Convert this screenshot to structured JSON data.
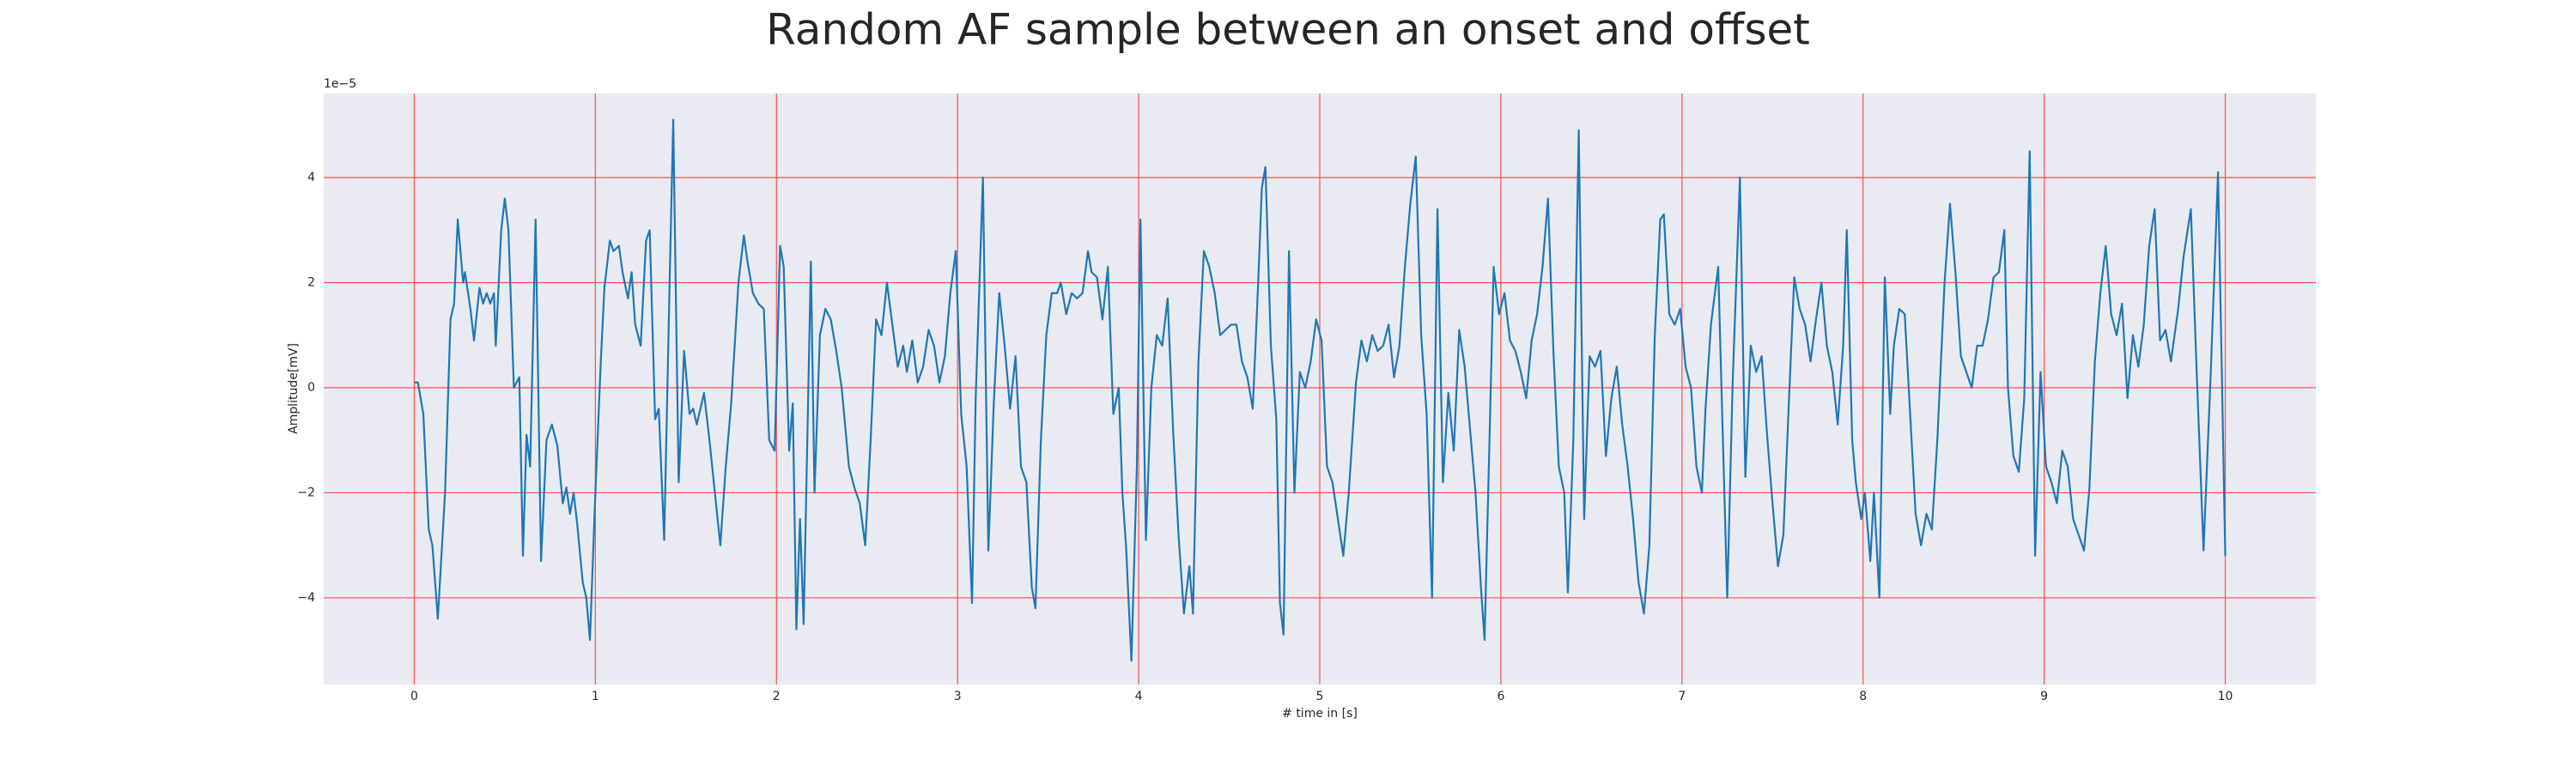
{
  "chart_data": {
    "type": "line",
    "title": "Random AF sample between an onset and offset",
    "xlabel": "# time in [s]",
    "ylabel": "Amplitude[mV]",
    "y_offset_label": "1e−5",
    "xlim": [
      -0.5,
      10.5
    ],
    "ylim": [
      -5.65,
      5.6
    ],
    "xticks": [
      0,
      1,
      2,
      3,
      4,
      5,
      6,
      7,
      8,
      9,
      10
    ],
    "yticks": [
      {
        "value": -4,
        "label": "−4"
      },
      {
        "value": -2,
        "label": "−2"
      },
      0,
      2,
      4
    ],
    "grid": true,
    "grid_color": "#ff4d4d",
    "background": "#eaeaf2",
    "x": [
      0,
      0.02,
      0.05,
      0.08,
      0.1,
      0.13,
      0.17,
      0.2,
      0.22,
      0.24,
      0.27,
      0.28,
      0.31,
      0.33,
      0.36,
      0.38,
      0.4,
      0.42,
      0.44,
      0.45,
      0.48,
      0.5,
      0.52,
      0.55,
      0.58,
      0.6,
      0.62,
      0.64,
      0.67,
      0.7,
      0.73,
      0.76,
      0.79,
      0.82,
      0.84,
      0.86,
      0.88,
      0.9,
      0.93,
      0.95,
      0.97,
      1.0,
      1.03,
      1.05,
      1.08,
      1.1,
      1.13,
      1.15,
      1.18,
      1.2,
      1.22,
      1.25,
      1.28,
      1.3,
      1.33,
      1.35,
      1.38,
      1.41,
      1.43,
      1.46,
      1.49,
      1.52,
      1.54,
      1.56,
      1.6,
      1.63,
      1.66,
      1.69,
      1.72,
      1.75,
      1.79,
      1.82,
      1.84,
      1.87,
      1.9,
      1.93,
      1.96,
      1.99,
      2.02,
      2.04,
      2.07,
      2.09,
      2.11,
      2.13,
      2.15,
      2.19,
      2.21,
      2.24,
      2.27,
      2.3,
      2.33,
      2.36,
      2.4,
      2.43,
      2.46,
      2.49,
      2.52,
      2.55,
      2.58,
      2.61,
      2.64,
      2.67,
      2.7,
      2.72,
      2.75,
      2.78,
      2.81,
      2.84,
      2.87,
      2.9,
      2.93,
      2.96,
      2.99,
      3.02,
      3.05,
      3.08,
      3.1,
      3.14,
      3.17,
      3.2,
      3.23,
      3.26,
      3.29,
      3.32,
      3.35,
      3.38,
      3.41,
      3.43,
      3.46,
      3.49,
      3.52,
      3.55,
      3.57,
      3.6,
      3.63,
      3.66,
      3.69,
      3.72,
      3.74,
      3.77,
      3.8,
      3.83,
      3.86,
      3.89,
      3.91,
      3.93,
      3.96,
      3.99,
      4.01,
      4.04,
      4.07,
      4.1,
      4.13,
      4.16,
      4.19,
      4.22,
      4.25,
      4.28,
      4.3,
      4.33,
      4.36,
      4.39,
      4.42,
      4.45,
      4.48,
      4.51,
      4.54,
      4.57,
      4.6,
      4.63,
      4.66,
      4.68,
      4.7,
      4.73,
      4.76,
      4.78,
      4.8,
      4.83,
      4.86,
      4.89,
      4.92,
      4.95,
      4.98,
      5.01,
      5.04,
      5.07,
      5.1,
      5.13,
      5.16,
      5.2,
      5.23,
      5.26,
      5.29,
      5.32,
      5.35,
      5.38,
      5.41,
      5.44,
      5.47,
      5.5,
      5.53,
      5.56,
      5.59,
      5.62,
      5.65,
      5.68,
      5.71,
      5.74,
      5.77,
      5.8,
      5.83,
      5.86,
      5.89,
      5.91,
      5.94,
      5.96,
      5.99,
      6.02,
      6.05,
      6.08,
      6.11,
      6.14,
      6.17,
      6.2,
      6.23,
      6.26,
      6.29,
      6.32,
      6.35,
      6.37,
      6.4,
      6.43,
      6.46,
      6.49,
      6.52,
      6.55,
      6.58,
      6.61,
      6.64,
      6.67,
      6.7,
      6.73,
      6.76,
      6.79,
      6.82,
      6.85,
      6.88,
      6.9,
      6.93,
      6.96,
      6.99,
      7.02,
      7.05,
      7.08,
      7.11,
      7.13,
      7.16,
      7.2,
      7.23,
      7.25,
      7.28,
      7.32,
      7.35,
      7.38,
      7.41,
      7.44,
      7.47,
      7.5,
      7.53,
      7.56,
      7.59,
      7.62,
      7.65,
      7.68,
      7.71,
      7.74,
      7.77,
      7.8,
      7.83,
      7.86,
      7.89,
      7.91,
      7.94,
      7.96,
      7.99,
      8.01,
      8.04,
      8.06,
      8.09,
      8.12,
      8.15,
      8.17,
      8.2,
      8.23,
      8.26,
      8.29,
      8.32,
      8.35,
      8.38,
      8.41,
      8.45,
      8.48,
      8.51,
      8.54,
      8.57,
      8.6,
      8.63,
      8.66,
      8.69,
      8.72,
      8.75,
      8.78,
      8.8,
      8.83,
      8.86,
      8.89,
      8.92,
      8.95,
      8.98,
      9.01,
      9.04,
      9.07,
      9.1,
      9.13,
      9.16,
      9.19,
      9.22,
      9.25,
      9.28,
      9.31,
      9.34,
      9.37,
      9.4,
      9.43,
      9.46,
      9.49,
      9.52,
      9.55,
      9.58,
      9.61,
      9.64,
      9.67,
      9.7,
      9.74,
      9.77,
      9.81,
      9.84,
      9.88,
      9.92,
      9.96,
      10.0
    ],
    "series": [
      {
        "color": "#1f77b4",
        "values": [
          0.1,
          0.1,
          -0.5,
          -2.7,
          -3.0,
          -4.4,
          -2.0,
          1.3,
          1.6,
          3.2,
          2.0,
          2.2,
          1.5,
          0.9,
          1.9,
          1.6,
          1.8,
          1.6,
          1.8,
          0.8,
          3.0,
          3.6,
          3.0,
          0.0,
          0.2,
          -3.2,
          -0.9,
          -1.5,
          3.2,
          -3.3,
          -1.0,
          -0.7,
          -1.1,
          -2.2,
          -1.9,
          -2.4,
          -2.0,
          -2.6,
          -3.7,
          -4.0,
          -4.8,
          -2.0,
          0.5,
          1.9,
          2.8,
          2.6,
          2.7,
          2.2,
          1.7,
          2.2,
          1.2,
          0.8,
          2.8,
          3.0,
          -0.6,
          -0.4,
          -2.9,
          2.0,
          5.1,
          -1.8,
          0.7,
          -0.5,
          -0.4,
          -0.7,
          -0.1,
          -1.0,
          -2.0,
          -3.0,
          -1.5,
          -0.3,
          2.0,
          2.9,
          2.4,
          1.8,
          1.6,
          1.5,
          -1.0,
          -1.2,
          2.7,
          2.3,
          -1.2,
          -0.3,
          -4.6,
          -2.5,
          -4.5,
          2.4,
          -2.0,
          1.0,
          1.5,
          1.3,
          0.7,
          0.0,
          -1.5,
          -1.9,
          -2.2,
          -3.0,
          -1.0,
          1.3,
          1.0,
          2.0,
          1.2,
          0.4,
          0.8,
          0.3,
          0.9,
          0.1,
          0.4,
          1.1,
          0.8,
          0.1,
          0.6,
          1.8,
          2.6,
          -0.5,
          -1.5,
          -4.1,
          -0.2,
          4.0,
          -3.1,
          -0.3,
          1.8,
          0.8,
          -0.4,
          0.6,
          -1.5,
          -1.8,
          -3.8,
          -4.2,
          -1.0,
          1.0,
          1.8,
          1.8,
          2.0,
          1.4,
          1.8,
          1.7,
          1.8,
          2.6,
          2.2,
          2.1,
          1.3,
          2.3,
          -0.5,
          0.0,
          -2.0,
          -3.0,
          -5.2,
          -1.5,
          3.2,
          -2.9,
          0.0,
          1.0,
          0.8,
          1.7,
          -0.8,
          -2.8,
          -4.3,
          -3.4,
          -4.3,
          0.5,
          2.6,
          2.3,
          1.8,
          1.0,
          1.1,
          1.2,
          1.2,
          0.5,
          0.2,
          -0.4,
          2.0,
          3.8,
          4.2,
          0.8,
          -0.6,
          -4.1,
          -4.7,
          2.6,
          -2.0,
          0.3,
          0.0,
          0.5,
          1.3,
          0.9,
          -1.5,
          -1.8,
          -2.5,
          -3.2,
          -2.0,
          0.1,
          0.9,
          0.5,
          1.0,
          0.7,
          0.8,
          1.2,
          0.2,
          0.8,
          2.3,
          3.5,
          4.4,
          1.0,
          -0.5,
          -4.0,
          3.4,
          -1.8,
          -0.1,
          -1.2,
          1.1,
          0.4,
          -0.8,
          -2.0,
          -3.8,
          -4.8,
          -0.6,
          2.3,
          1.4,
          1.8,
          0.9,
          0.7,
          0.3,
          -0.2,
          0.9,
          1.4,
          2.3,
          3.6,
          0.7,
          -1.5,
          -2.0,
          -3.9,
          -1.0,
          4.9,
          -2.5,
          0.6,
          0.4,
          0.7,
          -1.3,
          -0.2,
          0.4,
          -0.7,
          -1.5,
          -2.5,
          -3.7,
          -4.3,
          -3.0,
          1.0,
          3.2,
          3.3,
          1.4,
          1.2,
          1.5,
          0.4,
          0.0,
          -1.5,
          -2.0,
          -0.4,
          1.2,
          2.3,
          -1.5,
          -4.0,
          0.1,
          4.0,
          -1.7,
          0.8,
          0.3,
          0.6,
          -0.9,
          -2.2,
          -3.4,
          -2.8,
          -0.3,
          2.1,
          1.5,
          1.2,
          0.5,
          1.3,
          2.0,
          0.8,
          0.3,
          -0.7,
          0.8,
          3.0,
          -1.0,
          -1.8,
          -2.5,
          -2.0,
          -3.3,
          -2.0,
          -4.0,
          2.1,
          -0.5,
          0.8,
          1.5,
          1.4,
          -0.5,
          -2.4,
          -3.0,
          -2.4,
          -2.7,
          -1.0,
          2.0,
          3.5,
          2.2,
          0.6,
          0.3,
          0.0,
          0.8,
          0.8,
          1.3,
          2.1,
          2.2,
          3.0,
          0.0,
          -1.3,
          -1.6,
          -0.2,
          4.5,
          -3.2,
          0.3,
          -1.5,
          -1.8,
          -2.2,
          -1.2,
          -1.5,
          -2.5,
          -2.8,
          -3.1,
          -1.9,
          0.5,
          1.8,
          2.7,
          1.4,
          1.0,
          1.6,
          -0.2,
          1.0,
          0.4,
          1.2,
          2.7,
          3.4,
          0.9,
          1.1,
          0.5,
          1.5,
          2.5,
          3.4,
          0.5,
          -3.1,
          0.3,
          4.1,
          -3.2
        ]
      }
    ]
  }
}
